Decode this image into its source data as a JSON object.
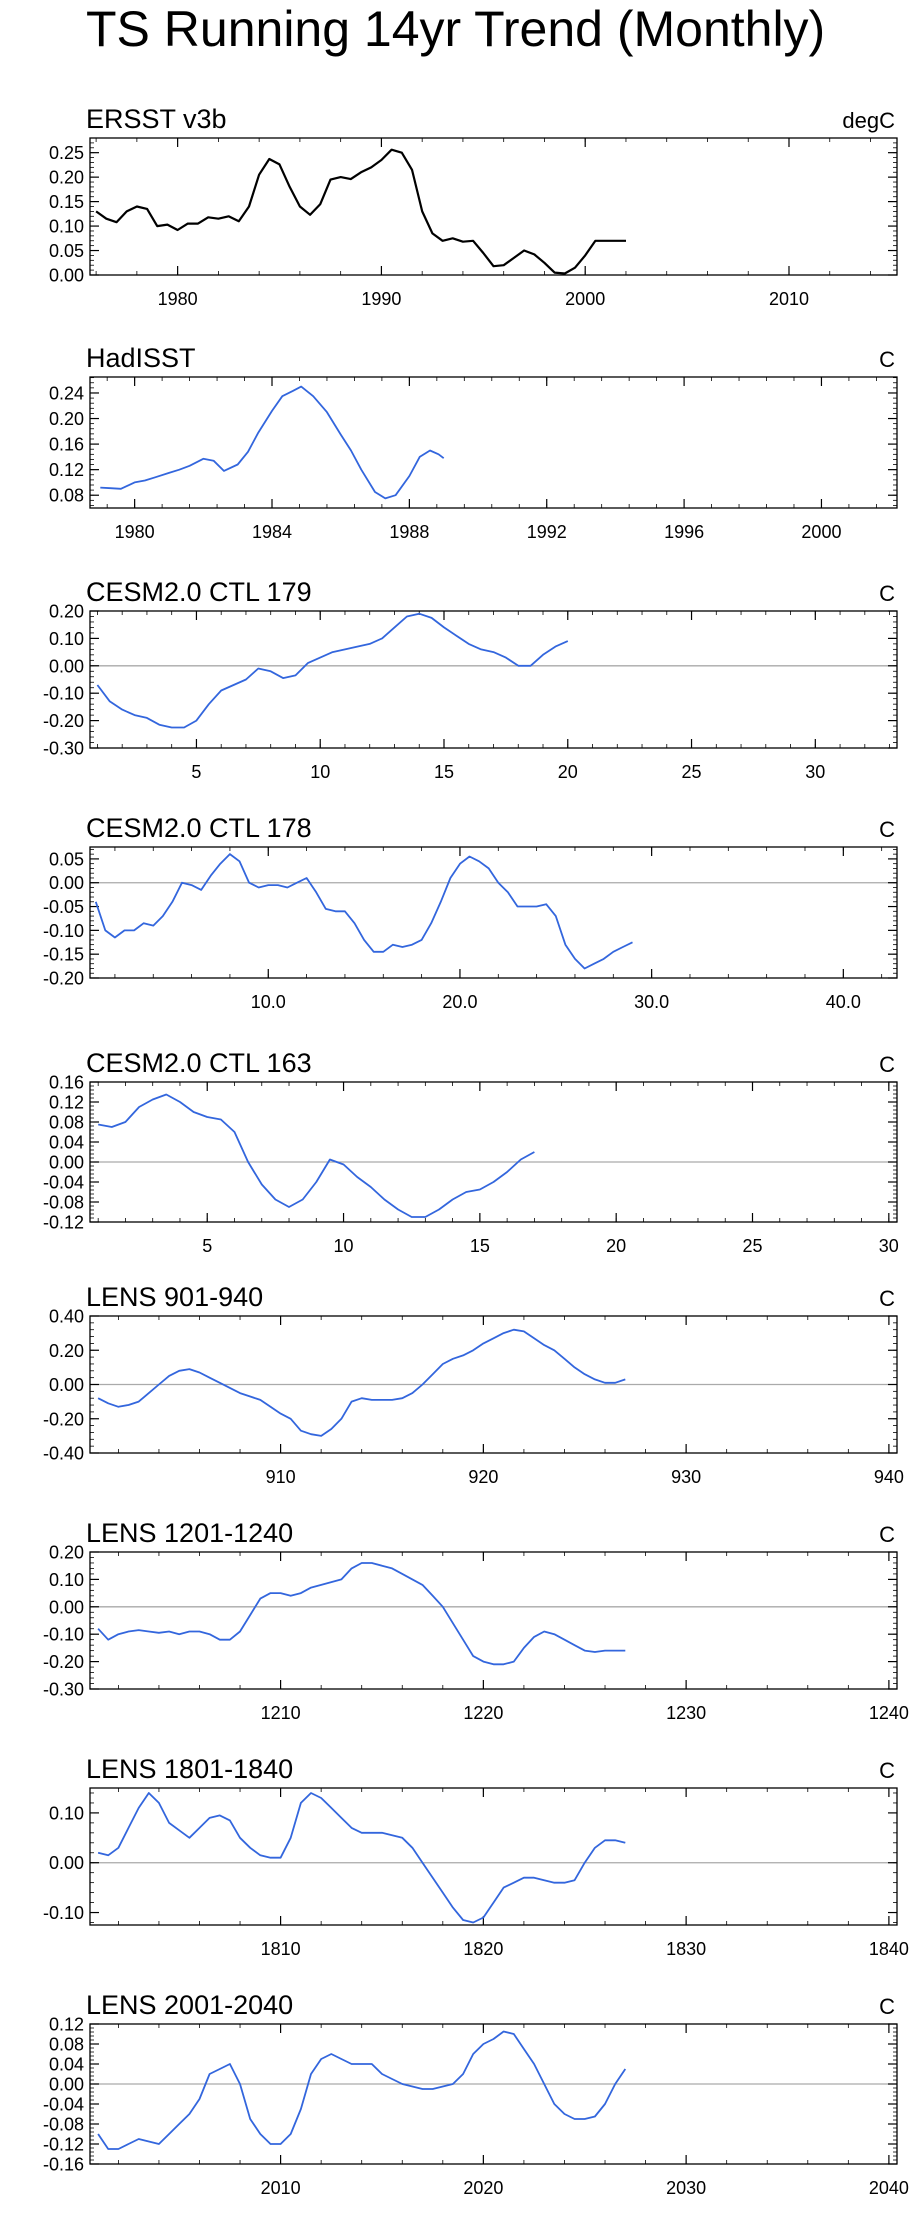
{
  "title": "TS Running 14yr Trend (Monthly)",
  "colors": {
    "obs_line": "#000000",
    "model_line": "#3366dd",
    "zero_line": "#aaaaaa",
    "axis": "#000000"
  },
  "chart_data": [
    {
      "type": "line",
      "title": "ERSST v3b",
      "units": "degC",
      "xlim": [
        1975.7,
        2015.3
      ],
      "ylim": [
        0,
        0.28
      ],
      "xticks": [
        1980,
        1990,
        2000,
        2010
      ],
      "xticklabels": [
        "1980",
        "1990",
        "2000",
        "2010"
      ],
      "yticks": [
        0,
        0.05,
        0.1,
        0.15,
        0.2,
        0.25
      ],
      "yticklabels": [
        "0.00",
        "0.05",
        "0.10",
        "0.15",
        "0.20",
        "0.25"
      ],
      "zero_line": false,
      "color": "#000000",
      "x": [
        1976,
        1976.5,
        1977,
        1977.5,
        1978,
        1978.5,
        1979,
        1979.5,
        1980,
        1980.5,
        1981,
        1981.5,
        1982,
        1982.5,
        1983,
        1983.5,
        1984,
        1984.5,
        1985,
        1985.5,
        1986,
        1986.5,
        1987,
        1987.5,
        1988,
        1988.5,
        1989,
        1989.5,
        1990,
        1990.5,
        1991,
        1991.5,
        1992,
        1992.5,
        1993,
        1993.5,
        1994,
        1994.5,
        1995,
        1995.5,
        1996,
        1996.5,
        1997,
        1997.5,
        1998,
        1998.5,
        1999,
        1999.5,
        2000,
        2000.5,
        2001,
        2001.5,
        2002
      ],
      "y": [
        0.13,
        0.115,
        0.108,
        0.13,
        0.14,
        0.135,
        0.1,
        0.103,
        0.092,
        0.105,
        0.105,
        0.118,
        0.115,
        0.12,
        0.11,
        0.14,
        0.205,
        0.237,
        0.226,
        0.18,
        0.14,
        0.123,
        0.145,
        0.195,
        0.2,
        0.196,
        0.21,
        0.22,
        0.235,
        0.256,
        0.25,
        0.215,
        0.13,
        0.085,
        0.07,
        0.075,
        0.068,
        0.07,
        0.045,
        0.018,
        0.02,
        0.035,
        0.05,
        0.042,
        0.025,
        0.005,
        0.003,
        0.015,
        0.04,
        0.07,
        0.07,
        0.07,
        0.07
      ]
    },
    {
      "type": "line",
      "title": "HadISST",
      "units": "C",
      "xlim": [
        1978.7,
        2002.2
      ],
      "ylim": [
        0.06,
        0.265
      ],
      "xticks": [
        1980,
        1984,
        1988,
        1992,
        1996,
        2000
      ],
      "xticklabels": [
        "1980",
        "1984",
        "1988",
        "1992",
        "1996",
        "2000"
      ],
      "yticks": [
        0.08,
        0.12,
        0.16,
        0.2,
        0.24
      ],
      "yticklabels": [
        "0.08",
        "0.12",
        "0.16",
        "0.20",
        "0.24"
      ],
      "zero_line": false,
      "color": "#3366dd",
      "x": [
        1979,
        1979.3,
        1979.6,
        1980,
        1980.3,
        1980.6,
        1981,
        1981.3,
        1981.6,
        1982,
        1982.3,
        1982.6,
        1983,
        1983.3,
        1983.6,
        1984,
        1984.3,
        1984.6,
        1984.85,
        1985.2,
        1985.6,
        1986,
        1986.3,
        1986.6,
        1987,
        1987.3,
        1987.6,
        1988,
        1988.3,
        1988.6,
        1988.85,
        1989
      ],
      "y": [
        0.092,
        0.091,
        0.09,
        0.1,
        0.103,
        0.108,
        0.115,
        0.12,
        0.126,
        0.137,
        0.134,
        0.118,
        0.128,
        0.148,
        0.178,
        0.212,
        0.235,
        0.243,
        0.25,
        0.235,
        0.21,
        0.175,
        0.15,
        0.12,
        0.085,
        0.075,
        0.08,
        0.11,
        0.14,
        0.15,
        0.144,
        0.138
      ]
    },
    {
      "type": "line",
      "title": "CESM2.0 CTL 179",
      "units": "C",
      "xlim": [
        0.7,
        33.3
      ],
      "ylim": [
        -0.3,
        0.2
      ],
      "xticks": [
        5,
        10,
        15,
        20,
        25,
        30
      ],
      "xticklabels": [
        "5",
        "10",
        "15",
        "20",
        "25",
        "30"
      ],
      "yticks": [
        -0.3,
        -0.2,
        -0.1,
        0,
        0.1,
        0.2
      ],
      "yticklabels": [
        "-0.30",
        "-0.20",
        "-0.10",
        "0.00",
        "0.10",
        "0.20"
      ],
      "zero_line": true,
      "color": "#3366dd",
      "x": [
        1,
        1.5,
        2,
        2.5,
        3,
        3.5,
        4,
        4.5,
        5,
        5.5,
        6,
        6.5,
        7,
        7.5,
        8,
        8.5,
        9,
        9.5,
        10,
        10.5,
        11,
        11.5,
        12,
        12.5,
        13,
        13.5,
        14,
        14.5,
        15,
        15.5,
        16,
        16.5,
        17,
        17.5,
        18,
        18.5,
        19,
        19.5,
        20
      ],
      "y": [
        -0.07,
        -0.13,
        -0.16,
        -0.18,
        -0.19,
        -0.215,
        -0.225,
        -0.225,
        -0.2,
        -0.14,
        -0.09,
        -0.07,
        -0.05,
        -0.01,
        -0.02,
        -0.045,
        -0.035,
        0.01,
        0.03,
        0.05,
        0.06,
        0.07,
        0.08,
        0.1,
        0.14,
        0.18,
        0.19,
        0.175,
        0.14,
        0.11,
        0.08,
        0.06,
        0.05,
        0.03,
        0.0,
        0.0,
        0.04,
        0.07,
        0.09
      ]
    },
    {
      "type": "line",
      "title": "CESM2.0 CTL 178",
      "units": "C",
      "xlim": [
        0.7,
        42.8
      ],
      "ylim": [
        -0.2,
        0.075
      ],
      "xticks": [
        10,
        20,
        30,
        40
      ],
      "xticklabels": [
        "10.0",
        "20.0",
        "30.0",
        "40.0"
      ],
      "yticks": [
        -0.2,
        -0.15,
        -0.1,
        -0.05,
        0,
        0.05
      ],
      "yticklabels": [
        "-0.20",
        "-0.15",
        "-0.10",
        "-0.05",
        "0.00",
        "0.05"
      ],
      "zero_line": true,
      "color": "#3366dd",
      "x": [
        1,
        1.5,
        2,
        2.5,
        3,
        3.5,
        4,
        4.5,
        5,
        5.5,
        6,
        6.5,
        7,
        7.5,
        8,
        8.5,
        9,
        9.5,
        10,
        10.5,
        11,
        11.5,
        12,
        12.5,
        13,
        13.5,
        14,
        14.5,
        15,
        15.5,
        16,
        16.5,
        17,
        17.5,
        18,
        18.5,
        19,
        19.5,
        20,
        20.5,
        21,
        21.5,
        22,
        22.5,
        23,
        23.5,
        24,
        24.5,
        25,
        25.5,
        26,
        26.5,
        27,
        27.5,
        28,
        28.5,
        29
      ],
      "y": [
        -0.04,
        -0.1,
        -0.115,
        -0.1,
        -0.1,
        -0.085,
        -0.09,
        -0.07,
        -0.04,
        0.0,
        -0.005,
        -0.015,
        0.015,
        0.04,
        0.06,
        0.045,
        0.0,
        -0.01,
        -0.005,
        -0.005,
        -0.01,
        0.0,
        0.01,
        -0.02,
        -0.055,
        -0.06,
        -0.06,
        -0.085,
        -0.12,
        -0.145,
        -0.145,
        -0.13,
        -0.135,
        -0.13,
        -0.12,
        -0.085,
        -0.04,
        0.01,
        0.04,
        0.055,
        0.045,
        0.03,
        0.0,
        -0.02,
        -0.05,
        -0.05,
        -0.05,
        -0.045,
        -0.07,
        -0.13,
        -0.16,
        -0.18,
        -0.17,
        -0.16,
        -0.145,
        -0.135,
        -0.125
      ]
    },
    {
      "type": "line",
      "title": "CESM2.0 CTL 163",
      "units": "C",
      "xlim": [
        0.7,
        30.3
      ],
      "ylim": [
        -0.12,
        0.16
      ],
      "xticks": [
        5,
        10,
        15,
        20,
        25,
        30
      ],
      "xticklabels": [
        "5",
        "10",
        "15",
        "20",
        "25",
        "30"
      ],
      "yticks": [
        -0.12,
        -0.08,
        -0.04,
        0,
        0.04,
        0.08,
        0.12,
        0.16
      ],
      "yticklabels": [
        "-0.12",
        "-0.08",
        "-0.04",
        "0.00",
        "0.04",
        "0.08",
        "0.12",
        "0.16"
      ],
      "zero_line": true,
      "color": "#3366dd",
      "x": [
        1,
        1.5,
        2,
        2.5,
        3,
        3.5,
        4,
        4.5,
        5,
        5.5,
        6,
        6.5,
        7,
        7.5,
        8,
        8.5,
        9,
        9.5,
        10,
        10.5,
        11,
        11.5,
        12,
        12.5,
        13,
        13.5,
        14,
        14.5,
        15,
        15.5,
        16,
        16.5,
        17
      ],
      "y": [
        0.075,
        0.07,
        0.08,
        0.11,
        0.125,
        0.135,
        0.12,
        0.1,
        0.09,
        0.085,
        0.06,
        0.0,
        -0.045,
        -0.075,
        -0.09,
        -0.075,
        -0.04,
        0.005,
        -0.005,
        -0.03,
        -0.05,
        -0.075,
        -0.095,
        -0.11,
        -0.11,
        -0.095,
        -0.075,
        -0.06,
        -0.055,
        -0.04,
        -0.02,
        0.005,
        0.02
      ]
    },
    {
      "type": "line",
      "title": "LENS 901-940",
      "units": "C",
      "xlim": [
        900.6,
        940.4
      ],
      "ylim": [
        -0.4,
        0.4
      ],
      "xticks": [
        910,
        920,
        930,
        940
      ],
      "xticklabels": [
        "910",
        "920",
        "930",
        "940"
      ],
      "yticks": [
        -0.4,
        -0.2,
        0,
        0.2,
        0.4
      ],
      "yticklabels": [
        "-0.40",
        "-0.20",
        "0.00",
        "0.20",
        "0.40"
      ],
      "zero_line": true,
      "color": "#3366dd",
      "x": [
        901,
        901.5,
        902,
        902.5,
        903,
        903.5,
        904,
        904.5,
        905,
        905.5,
        906,
        906.5,
        907,
        907.5,
        908,
        908.5,
        909,
        909.5,
        910,
        910.5,
        911,
        911.5,
        912,
        912.5,
        913,
        913.5,
        914,
        914.5,
        915,
        915.5,
        916,
        916.5,
        917,
        917.5,
        918,
        918.5,
        919,
        919.5,
        920,
        920.5,
        921,
        921.5,
        922,
        922.5,
        923,
        923.5,
        924,
        924.5,
        925,
        925.5,
        926,
        926.5,
        927
      ],
      "y": [
        -0.08,
        -0.11,
        -0.13,
        -0.12,
        -0.1,
        -0.05,
        0.0,
        0.05,
        0.08,
        0.09,
        0.07,
        0.04,
        0.01,
        -0.02,
        -0.05,
        -0.07,
        -0.09,
        -0.13,
        -0.17,
        -0.2,
        -0.27,
        -0.29,
        -0.3,
        -0.26,
        -0.2,
        -0.1,
        -0.08,
        -0.09,
        -0.09,
        -0.09,
        -0.08,
        -0.05,
        0.0,
        0.06,
        0.12,
        0.15,
        0.17,
        0.2,
        0.24,
        0.27,
        0.3,
        0.32,
        0.31,
        0.27,
        0.23,
        0.2,
        0.15,
        0.1,
        0.06,
        0.03,
        0.01,
        0.01,
        0.03
      ]
    },
    {
      "type": "line",
      "title": "LENS 1201-1240",
      "units": "C",
      "xlim": [
        1200.6,
        1240.4
      ],
      "ylim": [
        -0.3,
        0.2
      ],
      "xticks": [
        1210,
        1220,
        1230,
        1240
      ],
      "xticklabels": [
        "1210",
        "1220",
        "1230",
        "1240"
      ],
      "yticks": [
        -0.3,
        -0.2,
        -0.1,
        0,
        0.1,
        0.2
      ],
      "yticklabels": [
        "-0.30",
        "-0.20",
        "-0.10",
        "0.00",
        "0.10",
        "0.20"
      ],
      "zero_line": true,
      "color": "#3366dd",
      "x": [
        1201,
        1201.5,
        1202,
        1202.5,
        1203,
        1203.5,
        1204,
        1204.5,
        1205,
        1205.5,
        1206,
        1206.5,
        1207,
        1207.5,
        1208,
        1208.5,
        1209,
        1209.5,
        1210,
        1210.5,
        1211,
        1211.5,
        1212,
        1212.5,
        1213,
        1213.5,
        1214,
        1214.5,
        1215,
        1215.5,
        1216,
        1216.5,
        1217,
        1217.5,
        1218,
        1218.5,
        1219,
        1219.5,
        1220,
        1220.5,
        1221,
        1221.5,
        1222,
        1222.5,
        1223,
        1223.5,
        1224,
        1224.5,
        1225,
        1225.5,
        1226,
        1226.5,
        1227
      ],
      "y": [
        -0.08,
        -0.12,
        -0.1,
        -0.09,
        -0.085,
        -0.09,
        -0.095,
        -0.09,
        -0.1,
        -0.09,
        -0.09,
        -0.1,
        -0.12,
        -0.12,
        -0.09,
        -0.03,
        0.03,
        0.05,
        0.05,
        0.04,
        0.05,
        0.07,
        0.08,
        0.09,
        0.1,
        0.14,
        0.16,
        0.16,
        0.15,
        0.14,
        0.12,
        0.1,
        0.08,
        0.04,
        0.0,
        -0.06,
        -0.12,
        -0.18,
        -0.2,
        -0.21,
        -0.21,
        -0.2,
        -0.15,
        -0.11,
        -0.09,
        -0.1,
        -0.12,
        -0.14,
        -0.16,
        -0.165,
        -0.16,
        -0.16,
        -0.16
      ]
    },
    {
      "type": "line",
      "title": "LENS 1801-1840",
      "units": "C",
      "xlim": [
        1800.6,
        1840.4
      ],
      "ylim": [
        -0.125,
        0.15
      ],
      "xticks": [
        1810,
        1820,
        1830,
        1840
      ],
      "xticklabels": [
        "1810",
        "1820",
        "1830",
        "1840"
      ],
      "yticks": [
        -0.1,
        0,
        0.1
      ],
      "yticklabels": [
        "-0.10",
        "0.00",
        "0.10"
      ],
      "zero_line": true,
      "color": "#3366dd",
      "x": [
        1801,
        1801.5,
        1802,
        1802.5,
        1803,
        1803.5,
        1804,
        1804.5,
        1805,
        1805.5,
        1806,
        1806.5,
        1807,
        1807.5,
        1808,
        1808.5,
        1809,
        1809.5,
        1810,
        1810.5,
        1811,
        1811.5,
        1812,
        1812.5,
        1813,
        1813.5,
        1814,
        1814.5,
        1815,
        1815.5,
        1816,
        1816.5,
        1817,
        1817.5,
        1818,
        1818.5,
        1819,
        1819.5,
        1820,
        1820.5,
        1821,
        1821.5,
        1822,
        1822.5,
        1823,
        1823.5,
        1824,
        1824.5,
        1825,
        1825.5,
        1826,
        1826.5,
        1827
      ],
      "y": [
        0.02,
        0.015,
        0.03,
        0.07,
        0.11,
        0.14,
        0.12,
        0.08,
        0.065,
        0.05,
        0.07,
        0.09,
        0.095,
        0.085,
        0.05,
        0.03,
        0.015,
        0.01,
        0.01,
        0.05,
        0.12,
        0.14,
        0.13,
        0.11,
        0.09,
        0.07,
        0.06,
        0.06,
        0.06,
        0.055,
        0.05,
        0.03,
        0.0,
        -0.03,
        -0.06,
        -0.09,
        -0.115,
        -0.12,
        -0.11,
        -0.08,
        -0.05,
        -0.04,
        -0.03,
        -0.03,
        -0.035,
        -0.04,
        -0.04,
        -0.035,
        0.0,
        0.03,
        0.045,
        0.045,
        0.04
      ]
    },
    {
      "type": "line",
      "title": "LENS 2001-2040",
      "units": "C",
      "xlim": [
        2000.6,
        2040.4
      ],
      "ylim": [
        -0.16,
        0.12
      ],
      "xticks": [
        2010,
        2020,
        2030,
        2040
      ],
      "xticklabels": [
        "2010",
        "2020",
        "2030",
        "2040"
      ],
      "yticks": [
        -0.16,
        -0.12,
        -0.08,
        -0.04,
        0,
        0.04,
        0.08,
        0.12
      ],
      "yticklabels": [
        "-0.16",
        "-0.12",
        "-0.08",
        "-0.04",
        "0.00",
        "0.04",
        "0.08",
        "0.12"
      ],
      "zero_line": true,
      "color": "#3366dd",
      "x": [
        2001,
        2001.5,
        2002,
        2002.5,
        2003,
        2003.5,
        2004,
        2004.5,
        2005,
        2005.5,
        2006,
        2006.5,
        2007,
        2007.5,
        2008,
        2008.5,
        2009,
        2009.5,
        2010,
        2010.5,
        2011,
        2011.5,
        2012,
        2012.5,
        2013,
        2013.5,
        2014,
        2014.5,
        2015,
        2015.5,
        2016,
        2016.5,
        2017,
        2017.5,
        2018,
        2018.5,
        2019,
        2019.5,
        2020,
        2020.5,
        2021,
        2021.5,
        2022,
        2022.5,
        2023,
        2023.5,
        2024,
        2024.5,
        2025,
        2025.5,
        2026,
        2026.5,
        2027
      ],
      "y": [
        -0.1,
        -0.13,
        -0.13,
        -0.12,
        -0.11,
        -0.115,
        -0.12,
        -0.1,
        -0.08,
        -0.06,
        -0.03,
        0.02,
        0.03,
        0.04,
        0.0,
        -0.07,
        -0.1,
        -0.12,
        -0.12,
        -0.1,
        -0.05,
        0.02,
        0.05,
        0.06,
        0.05,
        0.04,
        0.04,
        0.04,
        0.02,
        0.01,
        0.0,
        -0.005,
        -0.01,
        -0.01,
        -0.005,
        0.0,
        0.02,
        0.06,
        0.08,
        0.09,
        0.105,
        0.1,
        0.07,
        0.04,
        0.0,
        -0.04,
        -0.06,
        -0.07,
        -0.07,
        -0.065,
        -0.04,
        0.0,
        0.03
      ]
    }
  ]
}
